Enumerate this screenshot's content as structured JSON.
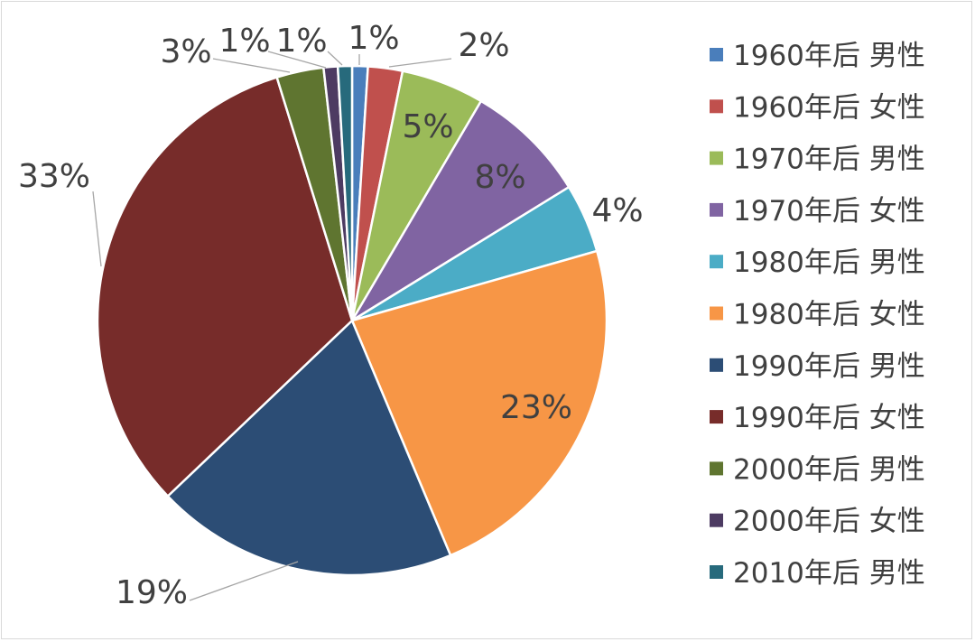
{
  "chart_data": {
    "type": "pie",
    "title": "",
    "categories": [
      "1960年后 男性",
      "1960年后 女性",
      "1970年后 男性",
      "1970年后 女性",
      "1980年后 男性",
      "1980年后 女性",
      "1990年后 男性",
      "1990年后 女性",
      "2000年后 男性",
      "2000年后 女性",
      "2010年后 男性"
    ],
    "values": [
      1.0,
      2.2,
      5.3,
      7.8,
      4.4,
      23.2,
      19.3,
      32.5,
      3.0,
      0.9,
      0.9
    ],
    "data_labels": [
      "1%",
      "2%",
      "5%",
      "8%",
      "4%",
      "23%",
      "19%",
      "33%",
      "3%",
      "1%",
      "1%"
    ],
    "colors": [
      "#4a7ebb",
      "#c0504d",
      "#9bbb59",
      "#8064a2",
      "#4bacc6",
      "#f79646",
      "#2c4d75",
      "#772c2a",
      "#5f7530",
      "#4d3b62",
      "#276a7c"
    ],
    "legend_position": "right"
  }
}
